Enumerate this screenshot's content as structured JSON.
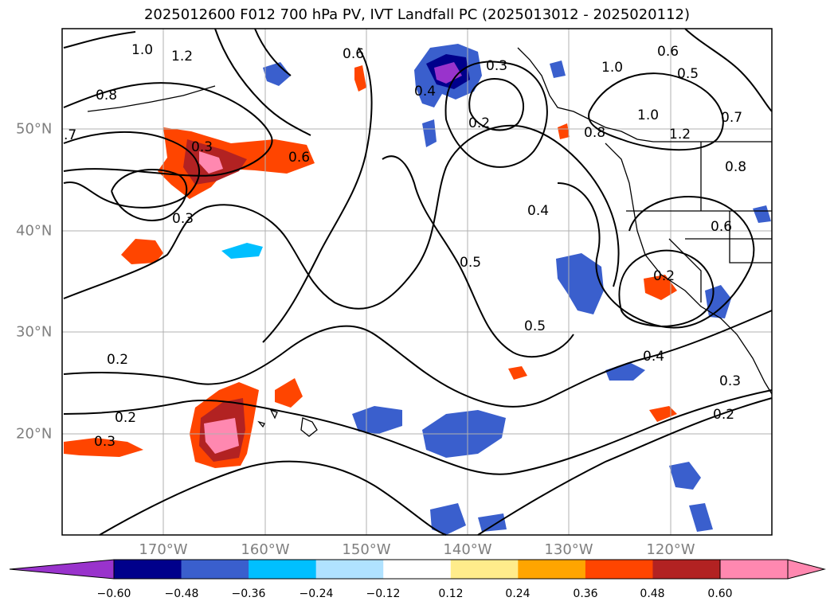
{
  "title": "2025012600 F012 700 hPa PV, IVT Landfall PC (2025013012 - 2025020112)",
  "longitude_labels": [
    "170°W",
    "160°W",
    "150°W",
    "140°W",
    "130°W",
    "120°W"
  ],
  "latitude_labels": [
    "50°N",
    "40°N",
    "30°N",
    "20°N"
  ],
  "pv_contour_labels": [
    "1.0",
    "1.2",
    "0.6",
    "0.8",
    ".7",
    "0.3",
    "0.6",
    "0.3",
    "0.4",
    "0.5",
    "0.5",
    "0.2",
    "0.2",
    "0.3",
    "0.4",
    "0.3",
    "0.2",
    "0.3",
    "0.2",
    "0.8",
    "1.0",
    "1.2",
    "0.8",
    "0.6",
    "0.7",
    "0.5",
    "0.6",
    "1.0",
    "0.4",
    "0.2"
  ],
  "colorbar": {
    "ticks": [
      "−0.60",
      "−0.48",
      "−0.36",
      "−0.24",
      "−0.12",
      "0.12",
      "0.24",
      "0.36",
      "0.48",
      "0.60"
    ],
    "colors": [
      "#9933cc",
      "#00008b",
      "#3a5fcd",
      "#00bfff",
      "#b0e2ff",
      "#ffffff",
      "#ffec8b",
      "#ffa500",
      "#ff4500",
      "#b22222",
      "#ff88b0"
    ]
  }
}
